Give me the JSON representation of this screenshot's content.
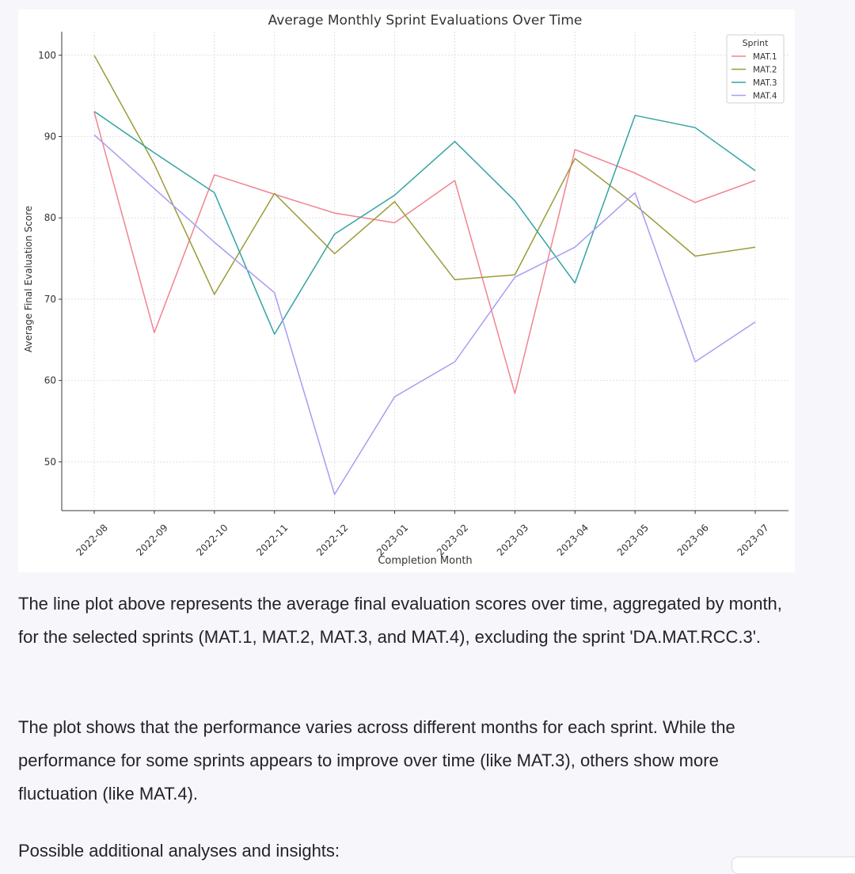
{
  "chart_data": {
    "type": "line",
    "title": "Average Monthly Sprint Evaluations Over Time",
    "xlabel": "Completion Month",
    "ylabel": "Average Final Evaluation Score",
    "categories": [
      "2022-08",
      "2022-09",
      "2022-10",
      "2022-11",
      "2022-12",
      "2023-01",
      "2023-02",
      "2023-03",
      "2023-04",
      "2023-05",
      "2023-06",
      "2023-07"
    ],
    "yticks": [
      50,
      60,
      70,
      80,
      90,
      100
    ],
    "ylim": [
      44,
      102.9
    ],
    "grid": true,
    "legend": {
      "title": "Sprint",
      "position": "top-right"
    },
    "series": [
      {
        "name": "MAT.1",
        "color": "#f2838f",
        "values": [
          93.0,
          65.9,
          85.3,
          82.9,
          80.6,
          79.4,
          84.6,
          58.4,
          88.4,
          85.5,
          81.9,
          84.6
        ]
      },
      {
        "name": "MAT.2",
        "color": "#9b9b3a",
        "values": [
          100.0,
          86.6,
          70.6,
          83.0,
          75.6,
          82.0,
          72.4,
          73.0,
          87.3,
          81.6,
          75.3,
          76.4
        ]
      },
      {
        "name": "MAT.3",
        "color": "#35a3a3",
        "values": [
          93.1,
          88.0,
          83.1,
          65.7,
          78.0,
          82.8,
          89.4,
          82.1,
          72.0,
          92.6,
          91.1,
          85.8
        ]
      },
      {
        "name": "MAT.4",
        "color": "#a99cf2",
        "values": [
          90.2,
          83.6,
          77.0,
          70.8,
          46.0,
          58.0,
          62.3,
          72.7,
          76.4,
          83.1,
          62.3,
          67.2
        ]
      }
    ]
  },
  "text": {
    "para1": "The line plot above represents the average final evaluation scores over time, aggregated by month, for the selected sprints (MAT.1, MAT.2, MAT.3, and MAT.4), excluding the sprint 'DA.MAT.RCC.3'.",
    "para2": "The plot shows that the performance varies across different months for each sprint. While the performance for some sprints appears to improve over time (like MAT.3), others show more fluctuation (like MAT.4).",
    "para3": "Possible additional analyses and insights:"
  }
}
